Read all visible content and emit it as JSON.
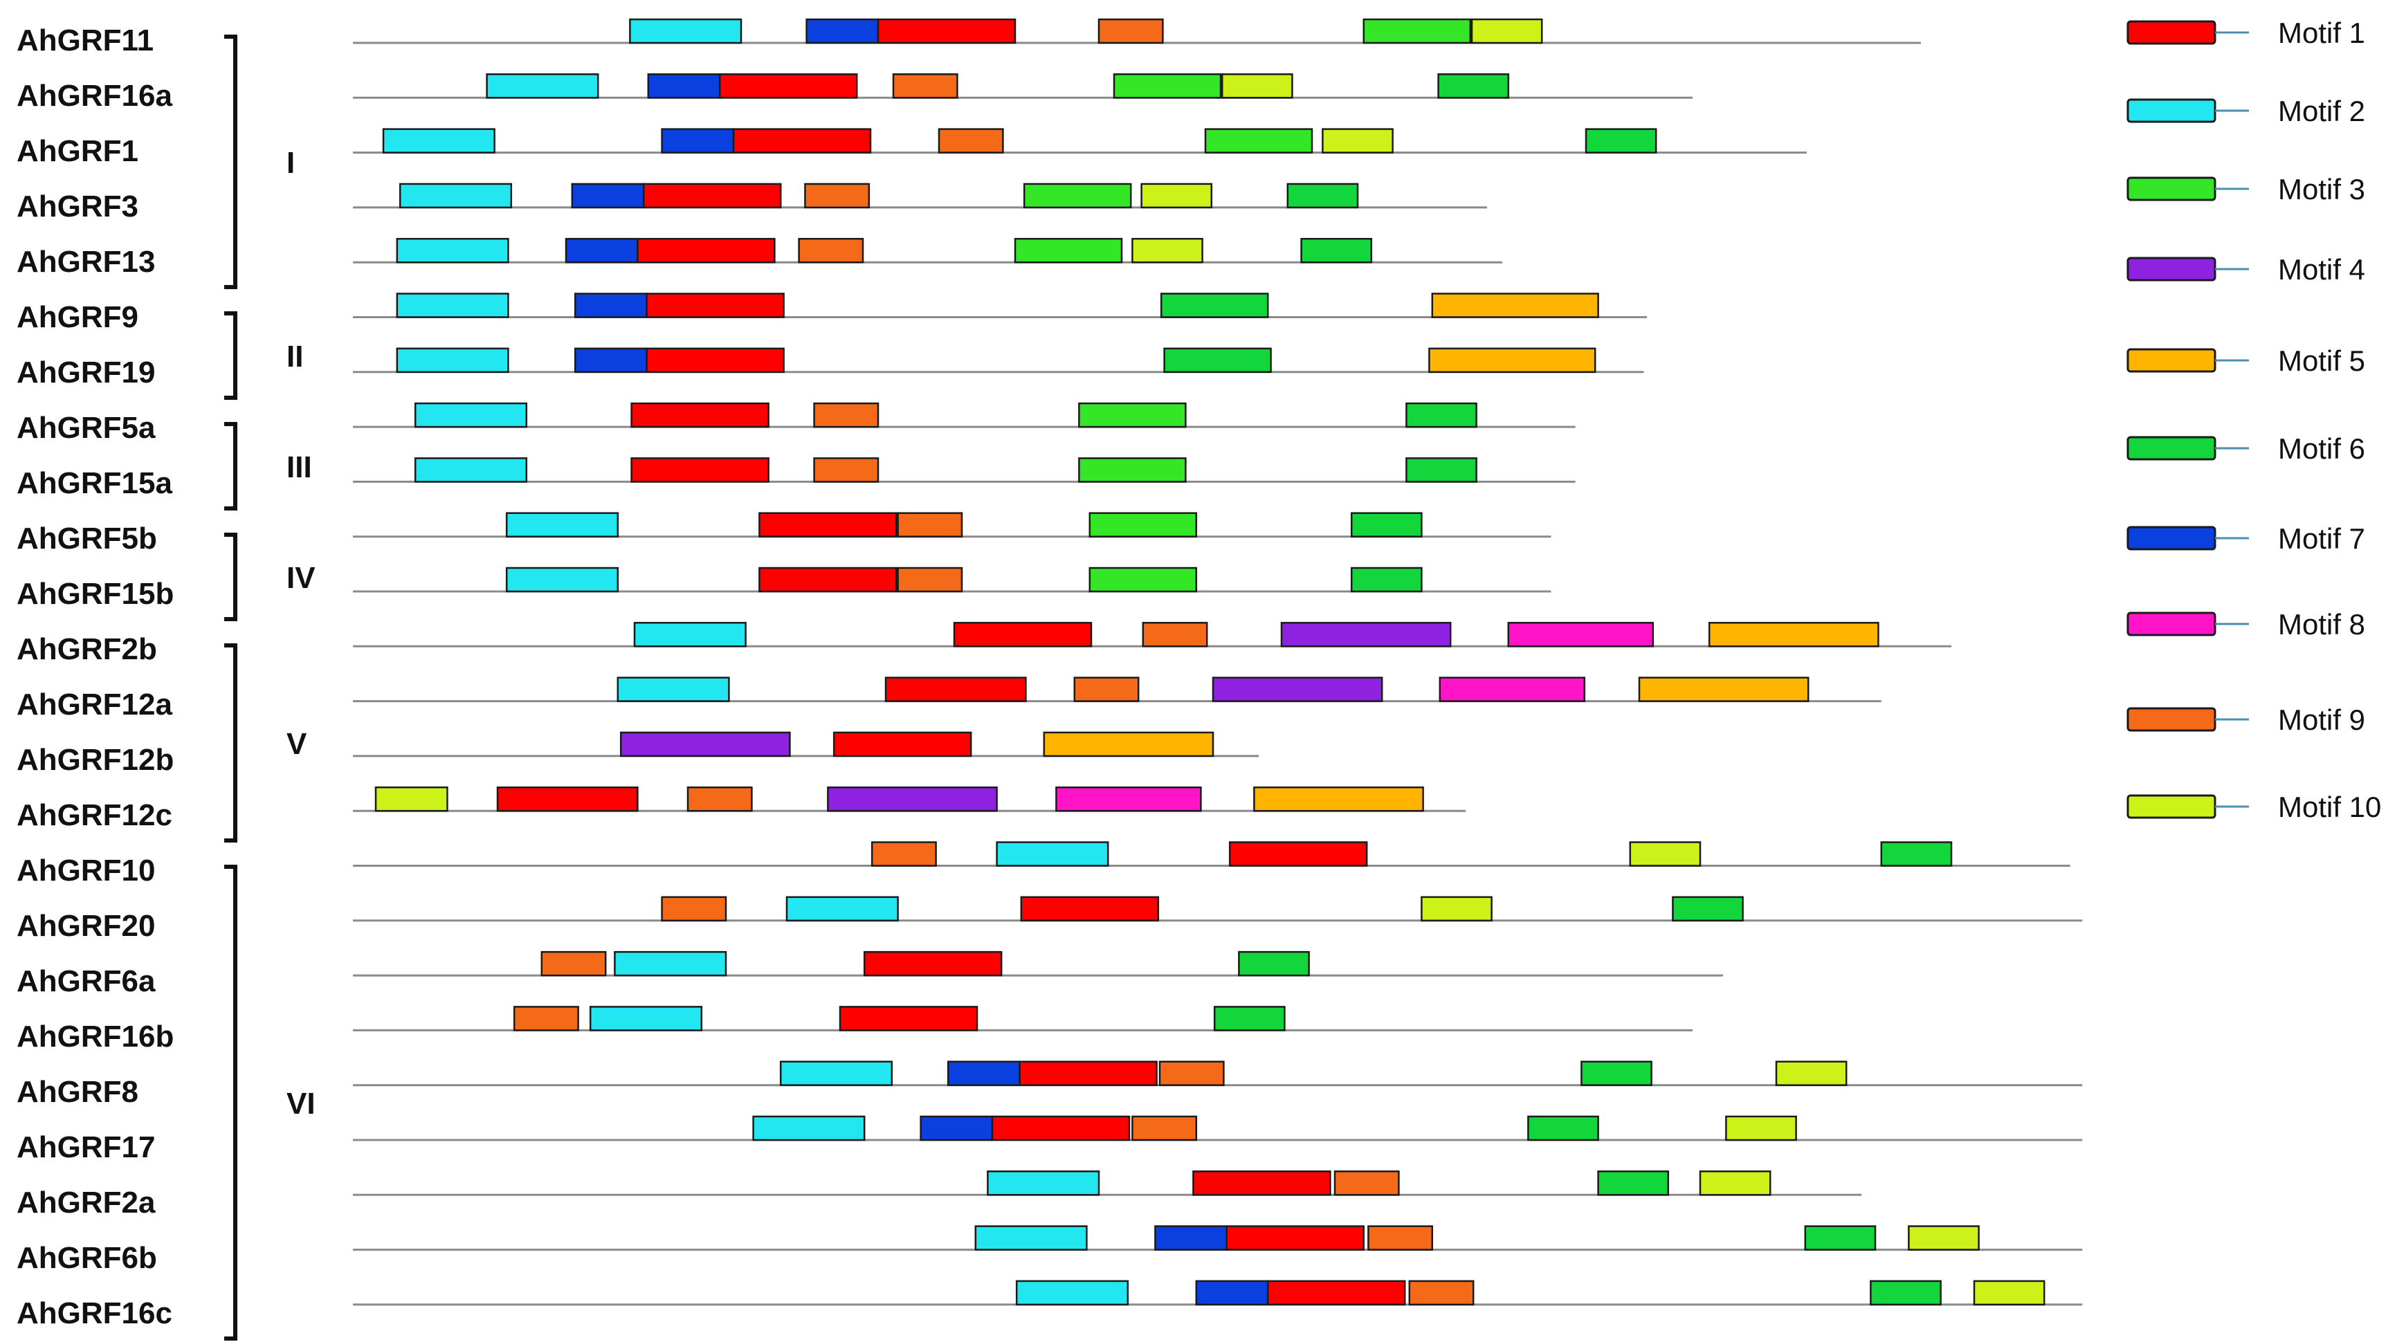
{
  "genes": [
    "AhGRF11",
    "AhGRF16a",
    "AhGRF1",
    "AhGRF3",
    "AhGRF13",
    "AhGRF9",
    "AhGRF19",
    "AhGRF5a",
    "AhGRF15a",
    "AhGRF5b",
    "AhGRF15b",
    "AhGRF2b",
    "AhGRF12a",
    "AhGRF12b",
    "AhGRF12c",
    "AhGRF10",
    "AhGRF20",
    "AhGRF6a",
    "AhGRF16b",
    "AhGRF8",
    "AhGRF17",
    "AhGRF2a",
    "AhGRF6b",
    "AhGRF16c"
  ],
  "groups": [
    {
      "label": "I",
      "first": 0,
      "last": 4
    },
    {
      "label": "II",
      "first": 5,
      "last": 6
    },
    {
      "label": "III",
      "first": 7,
      "last": 8
    },
    {
      "label": "IV",
      "first": 9,
      "last": 10
    },
    {
      "label": "V",
      "first": 11,
      "last": 14
    },
    {
      "label": "VI",
      "first": 15,
      "last": 23
    }
  ],
  "legend": [
    {
      "id": 1,
      "label": "Motif 1",
      "color": "#ff0000"
    },
    {
      "id": 2,
      "label": "Motif 2",
      "color": "#22e6f0"
    },
    {
      "id": 3,
      "label": "Motif 3",
      "color": "#33e626"
    },
    {
      "id": 4,
      "label": "Motif 4",
      "color": "#8f22e0"
    },
    {
      "id": 5,
      "label": "Motif 5",
      "color": "#ffb400"
    },
    {
      "id": 6,
      "label": "Motif 6",
      "color": "#13d63c"
    },
    {
      "id": 7,
      "label": "Motif 7",
      "color": "#0a3fe0"
    },
    {
      "id": 8,
      "label": "Motif 8",
      "color": "#ff14c8"
    },
    {
      "id": 9,
      "label": "Motif 9",
      "color": "#f56a19"
    },
    {
      "id": 10,
      "label": "Motif 10",
      "color": "#ccf21a"
    }
  ],
  "chart_data": {
    "type": "motif-diagram",
    "proteins": [
      {
        "length": 1030,
        "motifs": [
          [
            2,
            182,
            73
          ],
          [
            7,
            298,
            47
          ],
          [
            1,
            345,
            90
          ],
          [
            9,
            490,
            42
          ],
          [
            3,
            664,
            70
          ],
          [
            10,
            735,
            46
          ]
        ]
      },
      {
        "length": 880,
        "motifs": [
          [
            2,
            88,
            73
          ],
          [
            7,
            194,
            47
          ],
          [
            1,
            241,
            90
          ],
          [
            9,
            355,
            42
          ],
          [
            3,
            500,
            70
          ],
          [
            10,
            571,
            46
          ],
          [
            6,
            713,
            46
          ]
        ]
      },
      {
        "length": 955,
        "motifs": [
          [
            2,
            20,
            73
          ],
          [
            7,
            203,
            47
          ],
          [
            1,
            250,
            90
          ],
          [
            9,
            385,
            42
          ],
          [
            3,
            560,
            70
          ],
          [
            10,
            637,
            46
          ],
          [
            6,
            810,
            46
          ]
        ]
      },
      {
        "length": 745,
        "motifs": [
          [
            2,
            31,
            73
          ],
          [
            7,
            144,
            47
          ],
          [
            1,
            191,
            90
          ],
          [
            9,
            297,
            42
          ],
          [
            3,
            441,
            70
          ],
          [
            10,
            518,
            46
          ],
          [
            6,
            614,
            46
          ]
        ]
      },
      {
        "length": 755,
        "motifs": [
          [
            2,
            29,
            73
          ],
          [
            7,
            140,
            47
          ],
          [
            1,
            187,
            90
          ],
          [
            9,
            293,
            42
          ],
          [
            3,
            435,
            70
          ],
          [
            10,
            512,
            46
          ],
          [
            6,
            623,
            46
          ]
        ]
      },
      {
        "length": 850,
        "motifs": [
          [
            2,
            29,
            73
          ],
          [
            7,
            146,
            47
          ],
          [
            1,
            193,
            90
          ],
          [
            6,
            531,
            70
          ],
          [
            5,
            709,
            109
          ]
        ]
      },
      {
        "length": 848,
        "motifs": [
          [
            2,
            29,
            73
          ],
          [
            7,
            146,
            47
          ],
          [
            1,
            193,
            90
          ],
          [
            6,
            533,
            70
          ],
          [
            5,
            707,
            109
          ]
        ]
      },
      {
        "length": 803,
        "motifs": [
          [
            2,
            41,
            73
          ],
          [
            1,
            183,
            90
          ],
          [
            9,
            303,
            42
          ],
          [
            3,
            477,
            70
          ],
          [
            6,
            692,
            46
          ]
        ]
      },
      {
        "length": 803,
        "motifs": [
          [
            2,
            41,
            73
          ],
          [
            1,
            183,
            90
          ],
          [
            9,
            303,
            42
          ],
          [
            3,
            477,
            70
          ],
          [
            6,
            692,
            46
          ]
        ]
      },
      {
        "length": 787,
        "motifs": [
          [
            2,
            101,
            73
          ],
          [
            1,
            267,
            90
          ],
          [
            9,
            358,
            42
          ],
          [
            3,
            484,
            70
          ],
          [
            6,
            656,
            46
          ]
        ]
      },
      {
        "length": 787,
        "motifs": [
          [
            2,
            101,
            73
          ],
          [
            1,
            267,
            90
          ],
          [
            9,
            358,
            42
          ],
          [
            3,
            484,
            70
          ],
          [
            6,
            656,
            46
          ]
        ]
      },
      {
        "length": 1050,
        "motifs": [
          [
            2,
            185,
            73
          ],
          [
            1,
            395,
            90
          ],
          [
            9,
            519,
            42
          ],
          [
            4,
            610,
            111
          ],
          [
            8,
            759,
            95
          ],
          [
            5,
            891,
            111
          ]
        ]
      },
      {
        "length": 1004,
        "motifs": [
          [
            2,
            174,
            73
          ],
          [
            1,
            350,
            92
          ],
          [
            9,
            474,
            42
          ],
          [
            4,
            565,
            111
          ],
          [
            8,
            714,
            95
          ],
          [
            5,
            845,
            111
          ]
        ]
      },
      {
        "length": 595,
        "motifs": [
          [
            4,
            176,
            111
          ],
          [
            1,
            316,
            90
          ],
          [
            5,
            454,
            111
          ]
        ]
      },
      {
        "length": 731,
        "motifs": [
          [
            10,
            15,
            47
          ],
          [
            1,
            95,
            92
          ],
          [
            9,
            220,
            42
          ],
          [
            4,
            312,
            111
          ],
          [
            8,
            462,
            95
          ],
          [
            5,
            592,
            111
          ]
        ]
      },
      {
        "length": 1128,
        "motifs": [
          [
            9,
            341,
            42
          ],
          [
            2,
            423,
            73
          ],
          [
            1,
            576,
            90
          ],
          [
            10,
            839,
            46
          ],
          [
            6,
            1004,
            46
          ]
        ]
      },
      {
        "length": 1136,
        "motifs": [
          [
            9,
            203,
            42
          ],
          [
            2,
            285,
            73
          ],
          [
            1,
            439,
            90
          ],
          [
            10,
            702,
            46
          ],
          [
            6,
            867,
            46
          ]
        ]
      },
      {
        "length": 900,
        "motifs": [
          [
            9,
            124,
            42
          ],
          [
            2,
            172,
            73
          ],
          [
            1,
            336,
            90
          ],
          [
            6,
            582,
            46
          ]
        ]
      },
      {
        "length": 880,
        "motifs": [
          [
            9,
            106,
            42
          ],
          [
            2,
            156,
            73
          ],
          [
            1,
            320,
            90
          ],
          [
            6,
            566,
            46
          ]
        ]
      },
      {
        "length": 1136,
        "motifs": [
          [
            2,
            281,
            73
          ],
          [
            7,
            391,
            47
          ],
          [
            1,
            438,
            90
          ],
          [
            9,
            530,
            42
          ],
          [
            6,
            807,
            46
          ],
          [
            10,
            935,
            46
          ]
        ]
      },
      {
        "length": 1136,
        "motifs": [
          [
            2,
            263,
            73
          ],
          [
            7,
            373,
            47
          ],
          [
            1,
            420,
            90
          ],
          [
            9,
            512,
            42
          ],
          [
            6,
            772,
            46
          ],
          [
            10,
            902,
            46
          ]
        ]
      },
      {
        "length": 991,
        "motifs": [
          [
            2,
            417,
            73
          ],
          [
            1,
            552,
            90
          ],
          [
            9,
            645,
            42
          ],
          [
            6,
            818,
            46
          ],
          [
            10,
            885,
            46
          ]
        ]
      },
      {
        "length": 1136,
        "motifs": [
          [
            2,
            409,
            73
          ],
          [
            7,
            527,
            47
          ],
          [
            1,
            574,
            90
          ],
          [
            9,
            667,
            42
          ],
          [
            6,
            954,
            46
          ],
          [
            10,
            1022,
            46
          ]
        ]
      },
      {
        "length": 1136,
        "motifs": [
          [
            2,
            436,
            73
          ],
          [
            7,
            554,
            47
          ],
          [
            1,
            601,
            90
          ],
          [
            9,
            694,
            42
          ],
          [
            6,
            997,
            46
          ],
          [
            10,
            1065,
            46
          ]
        ]
      }
    ]
  }
}
